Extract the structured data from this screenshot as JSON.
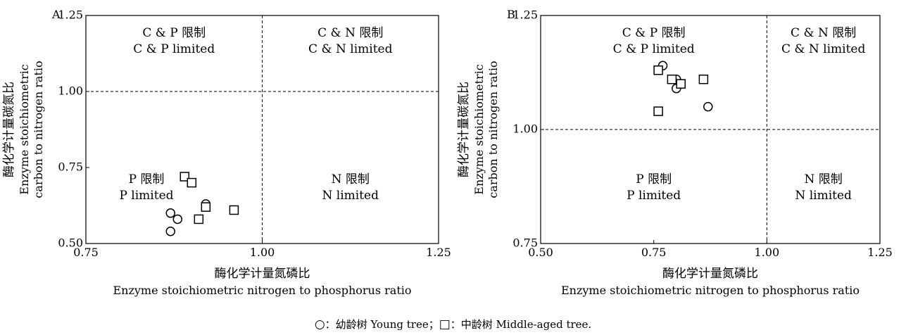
{
  "chart_data": [
    {
      "type": "scatter",
      "panel_label": "A",
      "xlabel_cn": "酶化学计量氮磷比",
      "xlabel_en": "Enzyme stoichiometric nitrogen to phosphorus ratio",
      "ylabel_cn": "酶化学计量碳氮比",
      "ylabel_en1": "Enzyme stoichiometric",
      "ylabel_en2": "carbon to nitrogen ratio",
      "xlim": [
        0.75,
        1.25
      ],
      "ylim": [
        0.5,
        1.25
      ],
      "xticks": [
        "0.75",
        "1.00",
        "1.25"
      ],
      "yticks": [
        "0.50",
        "0.75",
        "1.00",
        "1.25"
      ],
      "ref_x": 1.0,
      "ref_y": 1.0,
      "quadrants": {
        "top_left": [
          "C & P 限制",
          "C & P limited"
        ],
        "top_right": [
          "C & N 限制",
          "C & N limited"
        ],
        "bottom_left": [
          "P 限制",
          "P limited"
        ],
        "bottom_right": [
          "N 限制",
          "N limited"
        ]
      },
      "series": [
        {
          "marker": "circle",
          "points": [
            [
              0.87,
              0.54
            ],
            [
              0.87,
              0.6
            ],
            [
              0.88,
              0.58
            ],
            [
              0.92,
              0.63
            ]
          ]
        },
        {
          "marker": "square",
          "points": [
            [
              0.89,
              0.72
            ],
            [
              0.9,
              0.7
            ],
            [
              0.91,
              0.58
            ],
            [
              0.92,
              0.62
            ],
            [
              0.96,
              0.61
            ]
          ]
        }
      ]
    },
    {
      "type": "scatter",
      "panel_label": "B",
      "xlabel_cn": "酶化学计量氮磷比",
      "xlabel_en": "Enzyme stoichiometric nitrogen to phosphorus ratio",
      "ylabel_cn": "酶化学计量碳氮比",
      "ylabel_en1": "Enzyme stoichiometric",
      "ylabel_en2": "carbon to nitrogen ratio",
      "xlim": [
        0.5,
        1.25
      ],
      "ylim": [
        0.75,
        1.25
      ],
      "xticks": [
        "0.50",
        "0.75",
        "1.00",
        "1.25"
      ],
      "yticks": [
        "0.75",
        "1.00",
        "1.25"
      ],
      "ref_x": 1.0,
      "ref_y": 1.0,
      "quadrants": {
        "top_left": [
          "C & P 限制",
          "C & P limited"
        ],
        "top_right": [
          "C & N 限制",
          "C & N limited"
        ],
        "bottom_left": [
          "P 限制",
          "P limited"
        ],
        "bottom_right": [
          "N 限制",
          "N limited"
        ]
      },
      "series": [
        {
          "marker": "circle",
          "points": [
            [
              0.77,
              1.14
            ],
            [
              0.8,
              1.11
            ],
            [
              0.8,
              1.09
            ],
            [
              0.87,
              1.05
            ]
          ]
        },
        {
          "marker": "square",
          "points": [
            [
              0.76,
              1.13
            ],
            [
              0.79,
              1.11
            ],
            [
              0.81,
              1.1
            ],
            [
              0.86,
              1.11
            ],
            [
              0.76,
              1.04
            ]
          ]
        }
      ]
    }
  ],
  "legend": {
    "young_label": "：幼龄树 Young tree；",
    "middle_label": "：中龄树 Middle-aged tree."
  }
}
